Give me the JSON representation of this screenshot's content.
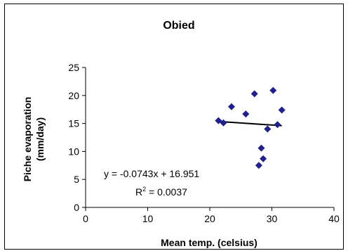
{
  "chart_data": {
    "type": "scatter",
    "title": "Obied",
    "xlabel": "Mean temp. (celsius)",
    "ylabel_line1": "Piche evaporation",
    "ylabel_line2": "(mm/day)",
    "xlim": [
      0,
      40
    ],
    "ylim": [
      0,
      25
    ],
    "x_ticks": [
      0,
      10,
      20,
      30,
      40
    ],
    "y_ticks": [
      0,
      5,
      10,
      15,
      20,
      25
    ],
    "grid": false,
    "marker_color": "#1f1f8f",
    "series": [
      {
        "points": [
          {
            "x": 21.4,
            "y": 15.5
          },
          {
            "x": 22.2,
            "y": 15.1
          },
          {
            "x": 23.5,
            "y": 18.0
          },
          {
            "x": 25.8,
            "y": 16.7
          },
          {
            "x": 27.2,
            "y": 20.3
          },
          {
            "x": 27.9,
            "y": 7.5
          },
          {
            "x": 28.3,
            "y": 10.6
          },
          {
            "x": 28.6,
            "y": 8.7
          },
          {
            "x": 29.3,
            "y": 14.0
          },
          {
            "x": 30.2,
            "y": 20.9
          },
          {
            "x": 30.9,
            "y": 14.8
          },
          {
            "x": 31.6,
            "y": 17.4
          }
        ]
      }
    ],
    "trendline": {
      "slope": -0.0743,
      "intercept": 16.951,
      "x_range": [
        21.4,
        31.6
      ],
      "equation_label": "y = -0.0743x + 16.951",
      "r2_prefix": "R",
      "r2_sup": "2",
      "r2_value": " = 0.0037"
    }
  }
}
